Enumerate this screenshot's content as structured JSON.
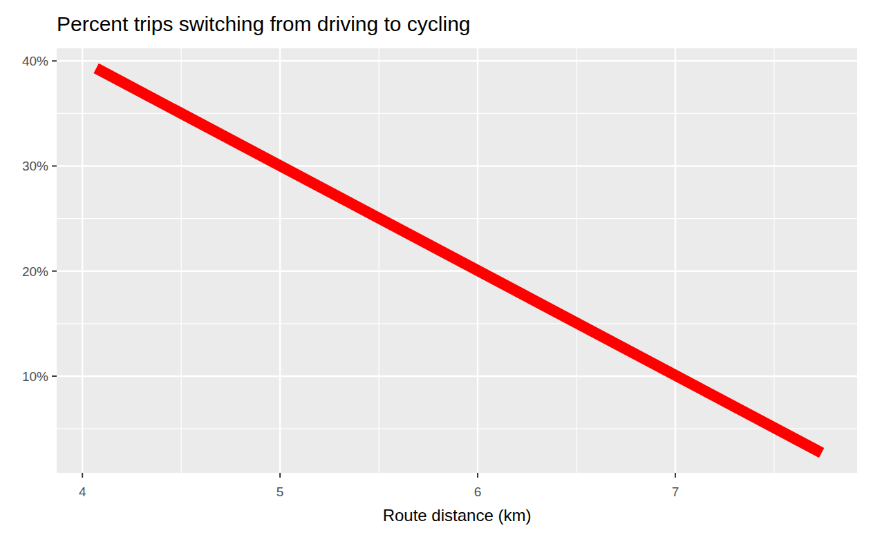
{
  "chart_data": {
    "type": "line",
    "title": "Percent trips switching from driving to cycling",
    "x_label": "Route distance (km)",
    "x": [
      4.07,
      7.74
    ],
    "values": [
      39.3,
      2.7
    ],
    "color": "#ff0000",
    "xlim": [
      3.87,
      7.92
    ],
    "xticks": [
      4,
      5,
      6,
      7
    ],
    "ylim": [
      0.8,
      41.2
    ],
    "yticks": [
      {
        "value": 10,
        "label": "10%"
      },
      {
        "value": 20,
        "label": "20%"
      },
      {
        "value": 30,
        "label": "30%"
      },
      {
        "value": 40,
        "label": "40%"
      }
    ],
    "grid": true
  }
}
